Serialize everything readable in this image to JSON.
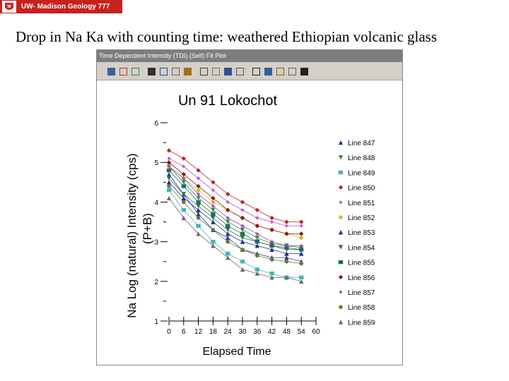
{
  "badge": {
    "text": "UW- Madison Geology  777",
    "color": "#c8201e"
  },
  "slide": {
    "title": "Drop in Na Ka with counting time: weathered Ethiopian volcanic glass"
  },
  "window": {
    "title": "Time Dependent Intensity (TDI) (Self) Fit Plot",
    "toolbar_icons": [
      "bar-chart-icon",
      "chart-type-icon",
      "color-icon",
      "grid-icon",
      "text-abc-icon",
      "number-format-icon",
      "legend-icon",
      "print-icon",
      "crosshair-icon",
      "axis-icon",
      "data-table-icon",
      "zoom-out-icon",
      "copy-icon",
      "properties-icon",
      "help-icon",
      "magnify-icon"
    ]
  },
  "chart_data": {
    "type": "scatter",
    "title": "Un   91   Lokochot",
    "xlabel": "Elapsed Time",
    "ylabel_line1": "Na Log (natural) Intensity (cps)",
    "ylabel_line2": "(P+B)",
    "xlim": [
      0,
      60
    ],
    "ylim": [
      1,
      6
    ],
    "x_ticks": [
      "0",
      "6",
      "12",
      "18",
      "24",
      "30",
      "36",
      "42",
      "48",
      "54",
      "60"
    ],
    "y_ticks": [
      "1",
      "2",
      "3",
      "4",
      "5",
      "6"
    ],
    "legend_position": "right",
    "series": [
      {
        "name": "Line 847",
        "marker": "triangle-up",
        "color": "#2b3a9c",
        "points": [
          [
            0,
            4.7
          ],
          [
            6,
            4.2
          ],
          [
            12,
            3.7
          ],
          [
            18,
            3.3
          ],
          [
            24,
            3.1
          ],
          [
            30,
            2.8
          ],
          [
            36,
            2.7
          ],
          [
            42,
            2.6
          ],
          [
            48,
            2.6
          ],
          [
            54,
            2.5
          ]
        ]
      },
      {
        "name": "Line 848",
        "marker": "triangle-down",
        "color": "#3b8a3b",
        "points": [
          [
            0,
            4.9
          ],
          [
            6,
            4.5
          ],
          [
            12,
            4.1
          ],
          [
            18,
            3.8
          ],
          [
            24,
            3.5
          ],
          [
            30,
            3.3
          ],
          [
            36,
            3.1
          ],
          [
            42,
            2.95
          ],
          [
            48,
            2.9
          ],
          [
            54,
            2.85
          ]
        ]
      },
      {
        "name": "Line 849",
        "marker": "square",
        "color": "#4bb0b8",
        "points": [
          [
            0,
            4.3
          ],
          [
            6,
            3.8
          ],
          [
            12,
            3.4
          ],
          [
            18,
            3.0
          ],
          [
            24,
            2.7
          ],
          [
            30,
            2.5
          ],
          [
            36,
            2.3
          ],
          [
            42,
            2.2
          ],
          [
            48,
            2.1
          ],
          [
            54,
            2.1
          ]
        ]
      },
      {
        "name": "Line 850",
        "marker": "diamond",
        "color": "#b8282e",
        "points": [
          [
            0,
            5.3
          ],
          [
            6,
            5.1
          ],
          [
            12,
            4.8
          ],
          [
            18,
            4.5
          ],
          [
            24,
            4.2
          ],
          [
            30,
            4.0
          ],
          [
            36,
            3.8
          ],
          [
            42,
            3.6
          ],
          [
            48,
            3.5
          ],
          [
            54,
            3.5
          ]
        ]
      },
      {
        "name": "Line 851",
        "marker": "star",
        "color": "#c04ac0",
        "points": [
          [
            0,
            5.1
          ],
          [
            6,
            4.9
          ],
          [
            12,
            4.6
          ],
          [
            18,
            4.3
          ],
          [
            24,
            4.0
          ],
          [
            30,
            3.8
          ],
          [
            36,
            3.6
          ],
          [
            42,
            3.5
          ],
          [
            48,
            3.4
          ],
          [
            54,
            3.4
          ]
        ]
      },
      {
        "name": "Line 852",
        "marker": "circle",
        "color": "#c8c030",
        "points": [
          [
            0,
            4.9
          ],
          [
            6,
            4.6
          ],
          [
            12,
            4.3
          ],
          [
            18,
            4.0
          ],
          [
            24,
            3.8
          ],
          [
            30,
            3.6
          ],
          [
            36,
            3.4
          ],
          [
            42,
            3.3
          ],
          [
            48,
            3.2
          ],
          [
            54,
            3.1
          ]
        ]
      },
      {
        "name": "Line 853",
        "marker": "triangle-up",
        "color": "#1f2f8a",
        "points": [
          [
            0,
            4.5
          ],
          [
            6,
            4.1
          ],
          [
            12,
            3.8
          ],
          [
            18,
            3.5
          ],
          [
            24,
            3.2
          ],
          [
            30,
            3.0
          ],
          [
            36,
            2.9
          ],
          [
            42,
            2.8
          ],
          [
            48,
            2.7
          ],
          [
            54,
            2.7
          ]
        ]
      },
      {
        "name": "Line 854",
        "marker": "triangle-down",
        "color": "#2e7a2e",
        "points": [
          [
            0,
            4.6
          ],
          [
            6,
            4.2
          ],
          [
            12,
            3.9
          ],
          [
            18,
            3.6
          ],
          [
            24,
            3.3
          ],
          [
            30,
            3.1
          ],
          [
            36,
            3.0
          ],
          [
            42,
            2.9
          ],
          [
            48,
            2.8
          ],
          [
            54,
            2.8
          ]
        ]
      },
      {
        "name": "Line 855",
        "marker": "square",
        "color": "#1e6a6e",
        "points": [
          [
            0,
            4.8
          ],
          [
            6,
            4.4
          ],
          [
            12,
            4.0
          ],
          [
            18,
            3.7
          ],
          [
            24,
            3.4
          ],
          [
            30,
            3.2
          ],
          [
            36,
            3.0
          ],
          [
            42,
            2.9
          ],
          [
            48,
            2.85
          ],
          [
            54,
            2.8
          ]
        ]
      },
      {
        "name": "Line 856",
        "marker": "diamond",
        "color": "#8a1a1a",
        "points": [
          [
            0,
            5.0
          ],
          [
            6,
            4.7
          ],
          [
            12,
            4.4
          ],
          [
            18,
            4.1
          ],
          [
            24,
            3.8
          ],
          [
            30,
            3.6
          ],
          [
            36,
            3.4
          ],
          [
            42,
            3.3
          ],
          [
            48,
            3.2
          ],
          [
            54,
            3.2
          ]
        ]
      },
      {
        "name": "Line 857",
        "marker": "star",
        "color": "#a040b0",
        "points": [
          [
            0,
            4.9
          ],
          [
            6,
            4.6
          ],
          [
            12,
            4.2
          ],
          [
            18,
            3.9
          ],
          [
            24,
            3.6
          ],
          [
            30,
            3.4
          ],
          [
            36,
            3.2
          ],
          [
            42,
            3.0
          ],
          [
            48,
            2.9
          ],
          [
            54,
            2.9
          ]
        ]
      },
      {
        "name": "Line 858",
        "marker": "circle",
        "color": "#6a7a2a",
        "points": [
          [
            0,
            4.4
          ],
          [
            6,
            4.0
          ],
          [
            12,
            3.6
          ],
          [
            18,
            3.3
          ],
          [
            24,
            3.0
          ],
          [
            30,
            2.8
          ],
          [
            36,
            2.65
          ],
          [
            42,
            2.55
          ],
          [
            48,
            2.5
          ],
          [
            54,
            2.45
          ]
        ]
      },
      {
        "name": "Line 859",
        "marker": "triangle-up",
        "color": "#6a6a6a",
        "points": [
          [
            0,
            4.1
          ],
          [
            6,
            3.6
          ],
          [
            12,
            3.2
          ],
          [
            18,
            2.9
          ],
          [
            24,
            2.6
          ],
          [
            30,
            2.3
          ],
          [
            36,
            2.2
          ],
          [
            42,
            2.1
          ],
          [
            48,
            2.1
          ],
          [
            54,
            2.0
          ]
        ]
      }
    ]
  }
}
